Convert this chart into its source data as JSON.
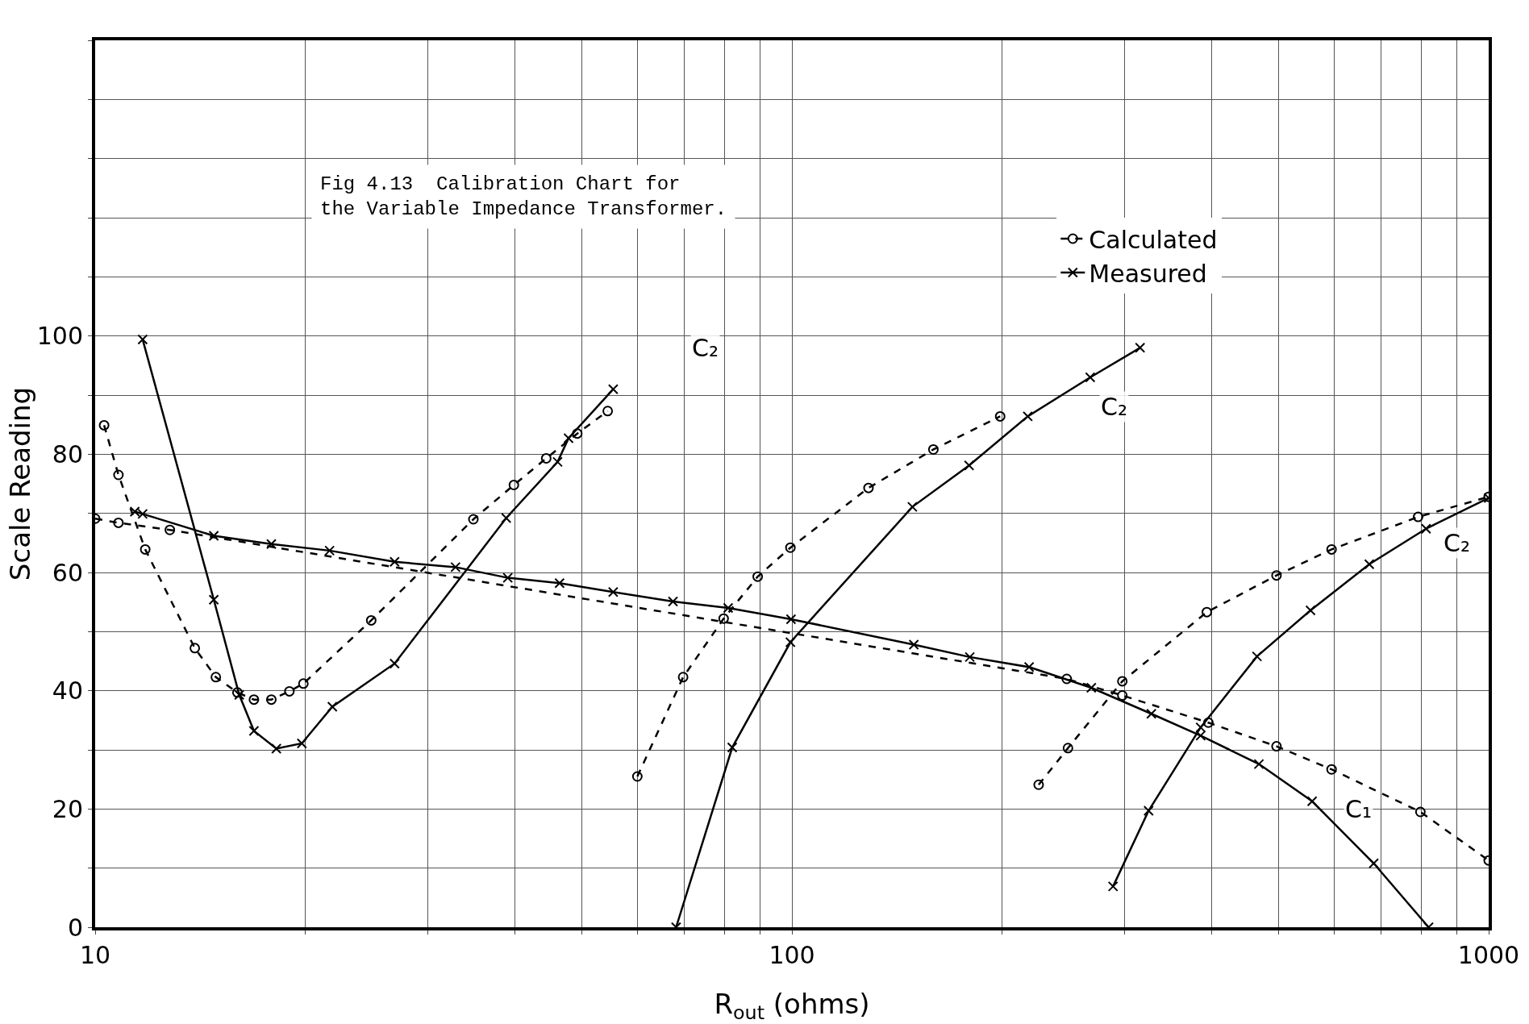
{
  "chart_data": {
    "type": "line",
    "title": "Fig 4.13  Calibration Chart for\nthe Variable Impedance Transformer.",
    "xlabel": "R$_{out}$ (ohms)",
    "ylabel": "Scale Reading",
    "log": "x",
    "xlim": [
      10,
      1000
    ],
    "ylim": [
      0,
      150
    ],
    "xticks": [
      10,
      {
        "value": 20,
        "label": null
      },
      {
        "value": 30,
        "label": null
      },
      {
        "value": 40,
        "label": null
      },
      {
        "value": 50,
        "label": null
      },
      {
        "value": 60,
        "label": null
      },
      {
        "value": 70,
        "label": null
      },
      {
        "value": 80,
        "label": null
      },
      {
        "value": 90,
        "label": null
      },
      100,
      {
        "value": 200,
        "label": null
      },
      {
        "value": 300,
        "label": null
      },
      {
        "value": 400,
        "label": null
      },
      {
        "value": 500,
        "label": null
      },
      {
        "value": 600,
        "label": null
      },
      {
        "value": 700,
        "label": null
      },
      {
        "value": 800,
        "label": null
      },
      {
        "value": 900,
        "label": null
      },
      1000
    ],
    "yticks": [
      0,
      {
        "value": 10,
        "label": null
      },
      20,
      {
        "value": 30,
        "label": null
      },
      40,
      {
        "value": 50,
        "label": null
      },
      60,
      {
        "value": 70,
        "label": null
      },
      80,
      {
        "value": 90,
        "label": null
      },
      100,
      {
        "value": 110,
        "label": null
      },
      {
        "value": 120,
        "label": null
      },
      {
        "value": 130,
        "label": null
      },
      {
        "value": 140,
        "label": null
      },
      {
        "value": 150,
        "label": null
      }
    ],
    "grid": true,
    "legend": "top right",
    "series": [
      {
        "name": "Calculated",
        "color": "#000000",
        "line_style": "dashed",
        "marker": "circle",
        "x": [
          10,
          10.8,
          12.8,
          248,
          298,
          396,
          496,
          595,
          798,
          1000
        ],
        "values": [
          69.1,
          68.4,
          67.2,
          42.0,
          39.2,
          34.6,
          30.6,
          26.7,
          19.5,
          11.3
        ]
      },
      {
        "name": "Measured",
        "color": "#000000",
        "line_style": "solid",
        "marker": "cross",
        "x": [
          11.4,
          11.7,
          14.8,
          17.9,
          21.7,
          26.9,
          32.9,
          39.1,
          46.4,
          55.4,
          67.5,
          81.0,
          99.7,
          149.6,
          180,
          219,
          269,
          328,
          386,
          468,
          558,
          684,
          820
        ],
        "values": [
          70.3,
          69.9,
          66.2,
          64.8,
          63.7,
          61.8,
          60.9,
          59.1,
          58.2,
          56.7,
          55.1,
          54.0,
          52.1,
          47.8,
          45.7,
          44.0,
          40.5,
          36.1,
          32.4,
          27.6,
          21.3,
          10.8,
          0
        ]
      },
      {
        "color": "#000000",
        "line_style": "dashed",
        "marker": "circle",
        "x": [
          10.3,
          10.8,
          11.8,
          13.9,
          14.9,
          16.0,
          16.9,
          17.9,
          19.0,
          19.9,
          24.9,
          34.9,
          39.9,
          44.4,
          49.2,
          54.4
        ],
        "values": [
          84.9,
          76.5,
          63.9,
          47.2,
          42.3,
          39.7,
          38.5,
          38.5,
          39.9,
          41.2,
          51.9,
          69.0,
          74.8,
          79.3,
          83.5,
          87.3
        ]
      },
      {
        "color": "#000000",
        "line_style": "solid",
        "marker": "cross",
        "x": [
          11.7,
          14.8,
          16.1,
          16.9,
          18.2,
          19.8,
          21.9,
          26.9,
          38.9,
          46.1,
          47.8,
          55.4
        ],
        "values": [
          99.4,
          55.4,
          39.3,
          33.2,
          30.2,
          31.1,
          37.3,
          44.6,
          69.2,
          78.7,
          82.7,
          91.0
        ]
      },
      {
        "color": "#000000",
        "line_style": "dashed",
        "marker": "circle",
        "x": [
          60.0,
          69.8,
          79.8,
          89.3,
          99.5,
          128.8,
          159.6,
          199
        ],
        "values": [
          25.5,
          42.3,
          52.2,
          59.3,
          64.2,
          74.3,
          80.8,
          86.4
        ]
      },
      {
        "color": "#000000",
        "line_style": "solid",
        "marker": "cross",
        "x": [
          68.2,
          82.1,
          99.5,
          148.9,
          179.6,
          218,
          268,
          316
        ],
        "values": [
          0,
          30.4,
          48.2,
          71.1,
          78.1,
          86.4,
          93.0,
          98.0
        ]
      },
      {
        "color": "#000000",
        "line_style": "dashed",
        "marker": "circle",
        "x": [
          226,
          249,
          298,
          394,
          496,
          595,
          792,
          1000
        ],
        "values": [
          24.1,
          30.3,
          41.6,
          53.3,
          59.5,
          63.9,
          69.4,
          72.8
        ]
      },
      {
        "color": "#000000",
        "line_style": "solid",
        "marker": "cross",
        "x": [
          289,
          325,
          386,
          465,
          555,
          674,
          813,
          1000
        ],
        "values": [
          6.9,
          19.7,
          33.8,
          45.8,
          53.6,
          61.4,
          67.4,
          72.6
        ]
      }
    ],
    "annotations": [
      {
        "text": "C₂",
        "x": 75,
        "y": 98
      },
      {
        "text": "C₂",
        "x": 290,
        "y": 88
      },
      {
        "text": "C₂",
        "x": 900,
        "y": 65
      },
      {
        "text": "C₁",
        "x": 650,
        "y": 20
      }
    ]
  }
}
